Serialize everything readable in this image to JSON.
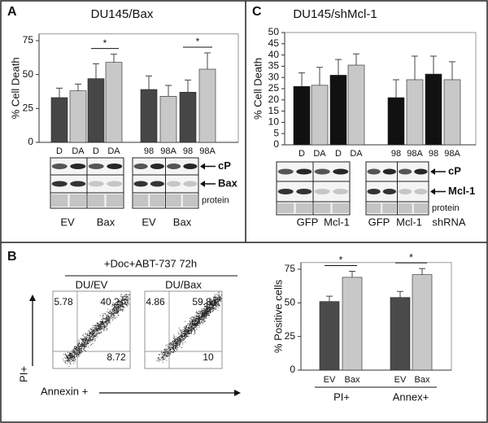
{
  "panel_labels": [
    "A",
    "B",
    "C"
  ],
  "chart_data": [
    {
      "type": "bar",
      "title": "DU145/Bax",
      "y_label": "% Cell Death",
      "categories": [
        "D",
        "DA",
        "D",
        "DA",
        "98",
        "98A",
        "98",
        "98A"
      ],
      "values": [
        33,
        38,
        47,
        59,
        39,
        34,
        37,
        54
      ],
      "errors": [
        7,
        5,
        11,
        6,
        10,
        8,
        9,
        12
      ],
      "colors": [
        "#464646",
        "#c8c8c8",
        "#464646",
        "#c8c8c8",
        "#464646",
        "#c8c8c8",
        "#464646",
        "#c8c8c8"
      ],
      "ylim": [
        0,
        80
      ],
      "yticks": [
        0,
        25,
        50,
        75
      ],
      "annotations": [
        {
          "label": "*",
          "bars": [
            2,
            3
          ]
        },
        {
          "label": "*",
          "bars": [
            6,
            7
          ]
        }
      ],
      "blot": {
        "bands": [
          "cP",
          "Bax",
          "protein"
        ],
        "groups": [
          "EV",
          "Bax",
          "EV",
          "Bax"
        ]
      }
    },
    {
      "type": "bar",
      "title": "DU145/shMcl-1",
      "y_label": "% Cell Death",
      "categories": [
        "D",
        "DA",
        "D",
        "DA",
        "98",
        "98A",
        "98",
        "98A"
      ],
      "values": [
        26,
        26.5,
        31,
        35.5,
        21,
        29,
        31.5,
        29
      ],
      "errors": [
        6,
        8,
        7,
        5,
        8,
        10.5,
        8,
        8
      ],
      "colors": [
        "#111111",
        "#c8c8c8",
        "#111111",
        "#c8c8c8",
        "#111111",
        "#c8c8c8",
        "#111111",
        "#c8c8c8"
      ],
      "ylim": [
        0,
        50
      ],
      "yticks": [
        0,
        5,
        10,
        15,
        20,
        25,
        30,
        35,
        40,
        45,
        50
      ],
      "blot": {
        "bands": [
          "cP",
          "Mcl-1",
          "protein"
        ],
        "groups": [
          "GFP",
          "Mcl-1",
          "GFP",
          "Mcl-1",
          "shRNA"
        ]
      }
    },
    {
      "type": "bar",
      "y_label": "% Positive cells",
      "categories": [
        "EV",
        "Bax",
        "EV",
        "Bax"
      ],
      "groups": [
        "PI+",
        "Annex+"
      ],
      "values": [
        51,
        69,
        54,
        71
      ],
      "errors": [
        4,
        4.5,
        4.5,
        4.5
      ],
      "colors": [
        "#4a4a4a",
        "#c8c8c8",
        "#4a4a4a",
        "#c8c8c8"
      ],
      "ylim": [
        0,
        80
      ],
      "yticks": [
        0,
        25,
        50,
        75
      ],
      "annotations": [
        {
          "label": "*",
          "bars": [
            0,
            1
          ]
        },
        {
          "label": "*",
          "bars": [
            2,
            3
          ]
        }
      ]
    }
  ],
  "flow": {
    "title": "+Doc+ABT-737 72h",
    "y_label": "PI+",
    "x_label": "Annexin +",
    "plots": [
      {
        "name": "DU/EV",
        "quadrants": [
          5.78,
          40.2,
          8.72
        ]
      },
      {
        "name": "DU/Bax",
        "quadrants": [
          4.86,
          59.8,
          10
        ]
      }
    ]
  }
}
